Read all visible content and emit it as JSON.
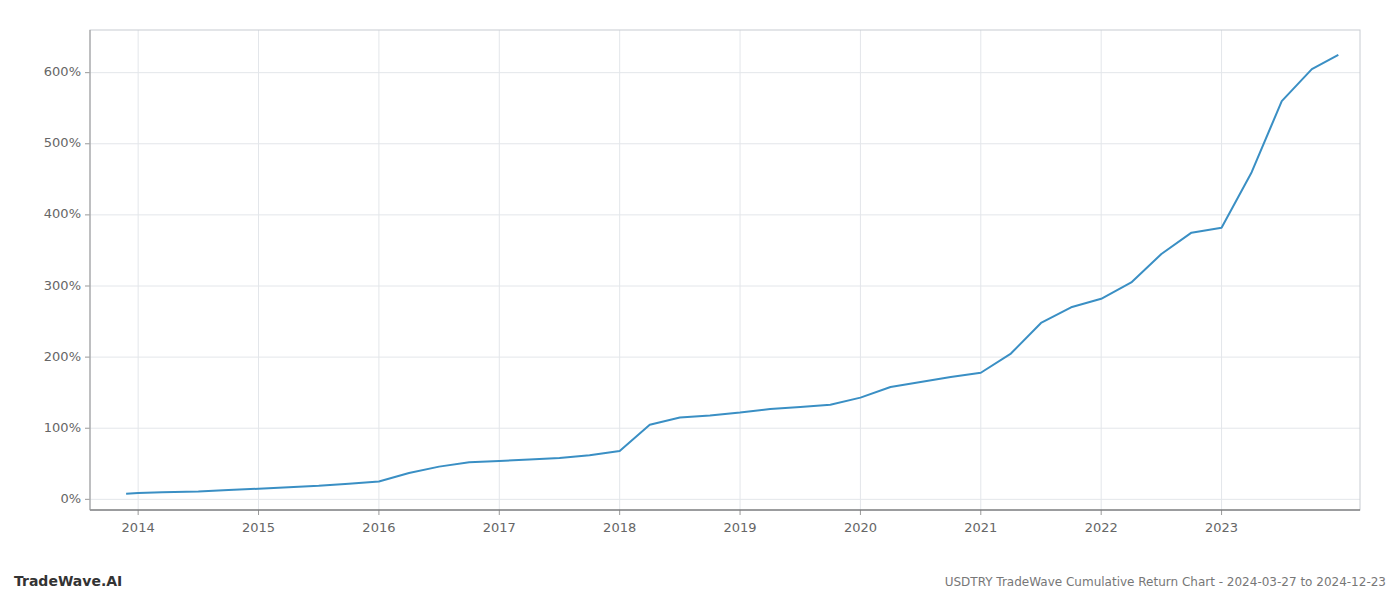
{
  "chart_data": {
    "type": "line",
    "title": "USDTRY TradeWave Cumulative Return Chart - 2024-03-27 to 2024-12-23",
    "annotations": [
      "TradeWave.AI"
    ],
    "color": "#3a8fc4",
    "x": [
      2013.9,
      2014.0,
      2014.2,
      2014.5,
      2014.75,
      2015.0,
      2015.25,
      2015.5,
      2015.75,
      2016.0,
      2016.25,
      2016.5,
      2016.75,
      2017.0,
      2017.25,
      2017.5,
      2017.75,
      2018.0,
      2018.25,
      2018.5,
      2018.75,
      2019.0,
      2019.25,
      2019.5,
      2019.75,
      2020.0,
      2020.25,
      2020.5,
      2020.75,
      2021.0,
      2021.25,
      2021.5,
      2021.75,
      2022.0,
      2022.25,
      2022.5,
      2022.75,
      2023.0,
      2023.25,
      2023.5,
      2023.75,
      2023.97
    ],
    "values": [
      8,
      9,
      10,
      11,
      13,
      15,
      17,
      19,
      22,
      25,
      37,
      46,
      52,
      54,
      56,
      58,
      62,
      68,
      105,
      115,
      118,
      122,
      127,
      130,
      133,
      143,
      158,
      165,
      172,
      178,
      205,
      248,
      270,
      282,
      305,
      345,
      375,
      382,
      460,
      560,
      605,
      625
    ],
    "xlim": [
      2013.6,
      2024.15
    ],
    "xticks": [
      2014,
      2015,
      2016,
      2017,
      2018,
      2019,
      2020,
      2021,
      2022,
      2023
    ],
    "ylim": [
      -15,
      660
    ],
    "yticks": [
      {
        "value": 0,
        "label": "0%"
      },
      {
        "value": 100,
        "label": "100%"
      },
      {
        "value": 200,
        "label": "200%"
      },
      {
        "value": 300,
        "label": "300%"
      },
      {
        "value": 400,
        "label": "400%"
      },
      {
        "value": 500,
        "label": "500%"
      },
      {
        "value": 600,
        "label": "600%"
      }
    ],
    "grid": true
  }
}
